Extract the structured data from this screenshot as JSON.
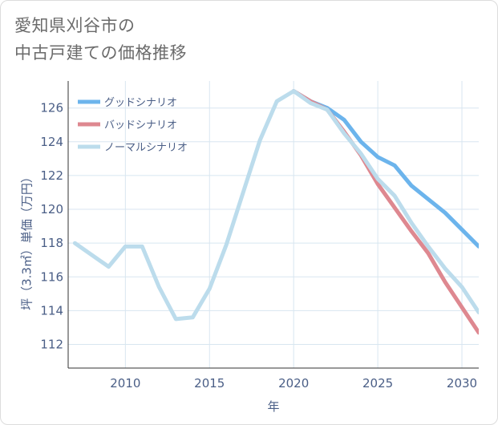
{
  "title_line1": "愛知県刈谷市の",
  "title_line2": "中古戸建ての価格推移",
  "chart_data": {
    "type": "line",
    "xlabel": "年",
    "ylabel": "坪（3.3㎡）単価（万円）",
    "xlim": [
      2006.6,
      2031
    ],
    "ylim": [
      110.6,
      127.6
    ],
    "xticks": [
      2010,
      2015,
      2020,
      2025,
      2030
    ],
    "yticks": [
      112,
      114,
      116,
      118,
      120,
      122,
      124,
      126
    ],
    "grid": true,
    "legend_position": "top-left",
    "series": [
      {
        "name": "グッドシナリオ",
        "color": "#6cb4ec",
        "x": [
          2020,
          2021,
          2022,
          2023,
          2024,
          2025,
          2026,
          2027,
          2028,
          2029,
          2030,
          2031
        ],
        "y": [
          127.0,
          126.4,
          126.0,
          125.3,
          124.0,
          123.1,
          122.6,
          121.4,
          120.6,
          119.8,
          118.8,
          117.8
        ]
      },
      {
        "name": "バッドシナリオ",
        "color": "#de8890",
        "x": [
          2020,
          2021,
          2022,
          2023,
          2024,
          2025,
          2026,
          2027,
          2028,
          2029,
          2030,
          2031
        ],
        "y": [
          127.0,
          126.4,
          125.9,
          124.6,
          123.2,
          121.5,
          120.1,
          118.7,
          117.4,
          115.7,
          114.2,
          112.7
        ]
      },
      {
        "name": "ノーマルシナリオ",
        "color": "#bcdcec",
        "x": [
          2007,
          2008,
          2009,
          2010,
          2011,
          2012,
          2013,
          2014,
          2015,
          2016,
          2017,
          2018,
          2019,
          2020,
          2021,
          2022,
          2023,
          2024,
          2025,
          2026,
          2027,
          2028,
          2029,
          2030,
          2031
        ],
        "y": [
          118.0,
          117.3,
          116.6,
          117.8,
          117.8,
          115.4,
          113.5,
          113.6,
          115.3,
          117.9,
          121.0,
          124.1,
          126.4,
          127.0,
          126.3,
          125.9,
          124.5,
          123.3,
          121.8,
          120.8,
          119.2,
          117.8,
          116.5,
          115.4,
          113.9
        ]
      }
    ]
  }
}
